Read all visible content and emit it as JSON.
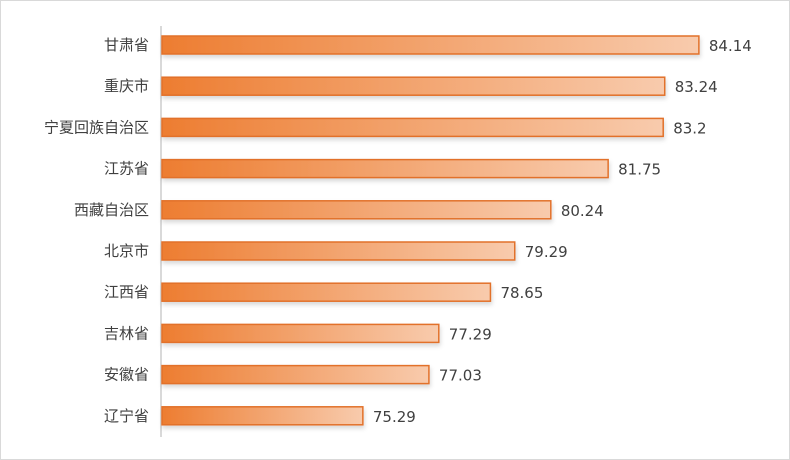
{
  "chart_data": {
    "type": "bar",
    "orientation": "horizontal",
    "title": "",
    "xlabel": "",
    "ylabel": "",
    "categories": [
      "甘肃省",
      "重庆市",
      "宁夏回族自治区",
      "江苏省",
      "西藏自治区",
      "北京市",
      "江西省",
      "吉林省",
      "安徽省",
      "辽宁省"
    ],
    "values": [
      84.14,
      83.24,
      83.2,
      81.75,
      80.24,
      79.29,
      78.65,
      77.29,
      77.03,
      75.29
    ],
    "value_labels": [
      "84.14",
      "83.24",
      "83.2",
      "81.75",
      "80.24",
      "79.29",
      "78.65",
      "77.29",
      "77.03",
      "75.29"
    ],
    "xlim": [
      70,
      86
    ],
    "grid": false,
    "colors": {
      "bar_start": "#ED7D31",
      "bar_end": "#F8CBAD",
      "bar_border": "#E2712A"
    }
  }
}
